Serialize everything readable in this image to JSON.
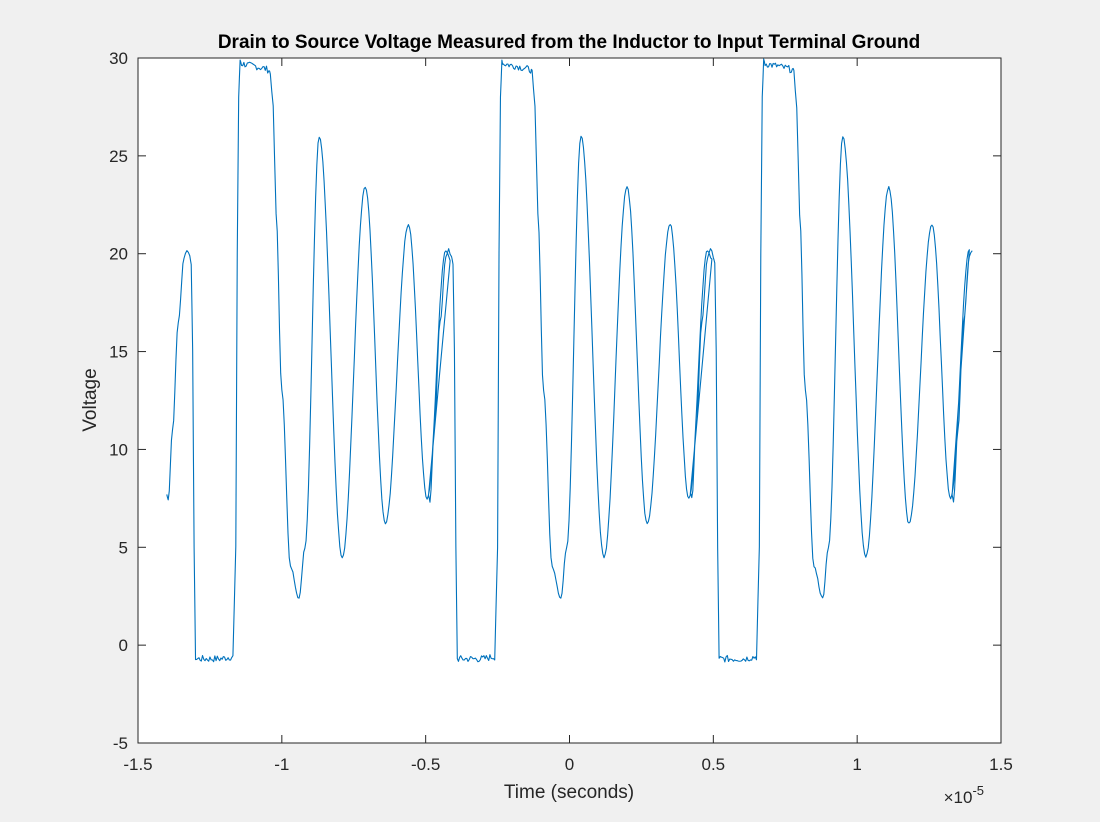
{
  "chart_data": {
    "type": "line",
    "title": "Drain to Source Voltage Measured from the Inductor to Input Terminal Ground",
    "xlabel": "Time (seconds)",
    "ylabel": "Voltage",
    "x_exponent_label": "×10",
    "x_exponent_power": "-5",
    "xlim": [
      -1.5,
      1.5
    ],
    "ylim": [
      -5,
      30
    ],
    "xticks": [
      -1.5,
      -1,
      -0.5,
      0,
      0.5,
      1,
      1.5
    ],
    "xtick_labels": [
      "-1.5",
      "-1",
      "-0.5",
      "0",
      "0.5",
      "1",
      "1.5"
    ],
    "yticks": [
      -5,
      0,
      5,
      10,
      15,
      20,
      25,
      30
    ],
    "ytick_labels": [
      "-5",
      "0",
      "5",
      "10",
      "15",
      "20",
      "25",
      "30"
    ],
    "grid": false,
    "line_color": "#0072BD",
    "period": 0.91,
    "series": [
      {
        "x": [
          -1.4,
          -1.395,
          -1.38,
          -1.36,
          -1.34,
          -1.33,
          -1.32,
          -1.315,
          -1.31,
          -1.305,
          -1.3,
          -1.28,
          -1.25,
          -1.22,
          -1.17,
          -1.16,
          -1.155,
          -1.15,
          -1.145,
          -1.14,
          -1.1,
          -1.07,
          -1.045,
          -1.04,
          -1.03,
          -1.02,
          -1.0,
          -0.97,
          -0.94,
          -0.92,
          -0.87,
          -0.79,
          -0.71,
          -0.64,
          -0.56,
          -0.495,
          -0.43,
          -0.415
        ],
        "values": [
          7.7,
          7.4,
          11.0,
          16.5,
          19.8,
          20.2,
          19.9,
          19.5,
          15.0,
          5.0,
          -0.7,
          -0.7,
          -0.7,
          -0.7,
          -0.6,
          5.0,
          20.0,
          28.0,
          29.9,
          29.7,
          29.6,
          29.5,
          29.4,
          29.2,
          27.5,
          22.0,
          13.0,
          4.0,
          2.4,
          5.0,
          26.0,
          4.5,
          23.4,
          6.2,
          21.5,
          7.5,
          20.2,
          19.7
        ]
      }
    ]
  }
}
